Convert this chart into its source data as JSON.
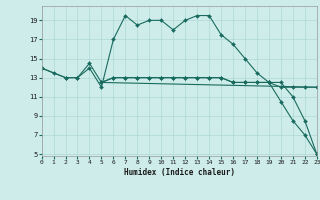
{
  "xlabel": "Humidex (Indice chaleur)",
  "bg_color": "#ceecea",
  "grid_color": "#aed8d4",
  "line_color": "#1a6b5f",
  "xmin": 0,
  "xmax": 23,
  "ymin": 5,
  "ymax": 20,
  "yticks": [
    5,
    7,
    9,
    11,
    13,
    15,
    17,
    19
  ],
  "xticks": [
    0,
    1,
    2,
    3,
    4,
    5,
    6,
    7,
    8,
    9,
    10,
    11,
    12,
    13,
    14,
    15,
    16,
    17,
    18,
    19,
    20,
    21,
    22,
    23
  ],
  "line1_x": [
    0,
    1,
    2,
    3,
    4,
    5,
    6,
    7,
    8,
    9,
    10,
    11,
    12,
    13,
    14,
    15,
    16,
    17,
    18,
    19,
    20,
    21,
    22,
    23
  ],
  "line1_y": [
    14,
    13.5,
    13,
    13,
    14,
    12,
    17,
    19.5,
    18.5,
    19,
    19,
    18,
    19,
    19.5,
    19.5,
    17.5,
    16.5,
    15,
    13.5,
    12.5,
    10.5,
    8.5,
    7,
    5
  ],
  "line2_x": [
    0,
    2,
    3,
    4,
    5,
    6,
    7,
    8,
    9,
    10,
    11,
    12,
    13,
    14,
    15,
    16,
    17,
    18,
    19,
    20,
    21,
    22,
    23
  ],
  "line2_y": [
    14,
    13,
    13,
    14.5,
    12.5,
    13,
    13,
    13,
    13,
    13,
    13,
    13,
    13,
    13,
    13,
    12.5,
    12.5,
    12.5,
    12.5,
    12,
    12,
    12,
    12
  ],
  "line3_x": [
    5,
    6,
    7,
    8,
    9,
    10,
    11,
    12,
    13,
    14,
    15,
    16,
    17,
    18,
    19,
    20,
    21,
    22,
    23
  ],
  "line3_y": [
    12.5,
    13,
    13,
    13,
    13,
    13,
    13,
    13,
    13,
    13,
    13,
    12.5,
    12.5,
    12.5,
    12.5,
    12.5,
    11,
    8.5,
    5
  ],
  "line4_x": [
    5,
    23
  ],
  "line4_y": [
    12.5,
    12
  ]
}
